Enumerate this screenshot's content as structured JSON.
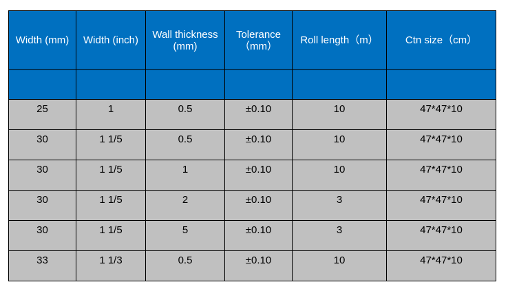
{
  "table": {
    "headers": [
      "Width (mm)",
      "Width (inch)",
      "Wall thickness (mm)",
      "Tolerance （mm）",
      "Roll length（m）",
      "Ctn size（cm）"
    ],
    "rows": [
      [
        "25",
        "1",
        "0.5",
        "±0.10",
        "10",
        "47*47*10"
      ],
      [
        "30",
        "1 1/5",
        "0.5",
        "±0.10",
        "10",
        "47*47*10"
      ],
      [
        "30",
        "1 1/5",
        "1",
        "±0.10",
        "10",
        "47*47*10"
      ],
      [
        "30",
        "1 1/5",
        "2",
        "±0.10",
        "3",
        "47*47*10"
      ],
      [
        "30",
        "1 1/5",
        "5",
        "±0.10",
        "3",
        "47*47*10"
      ],
      [
        "33",
        "1 1/3",
        "0.5",
        "±0.10",
        "10",
        "47*47*10"
      ]
    ]
  },
  "colors": {
    "header_background": "#0070c0",
    "header_text": "#ffffff",
    "body_background": "#c0c0c0",
    "border": "#000000"
  }
}
